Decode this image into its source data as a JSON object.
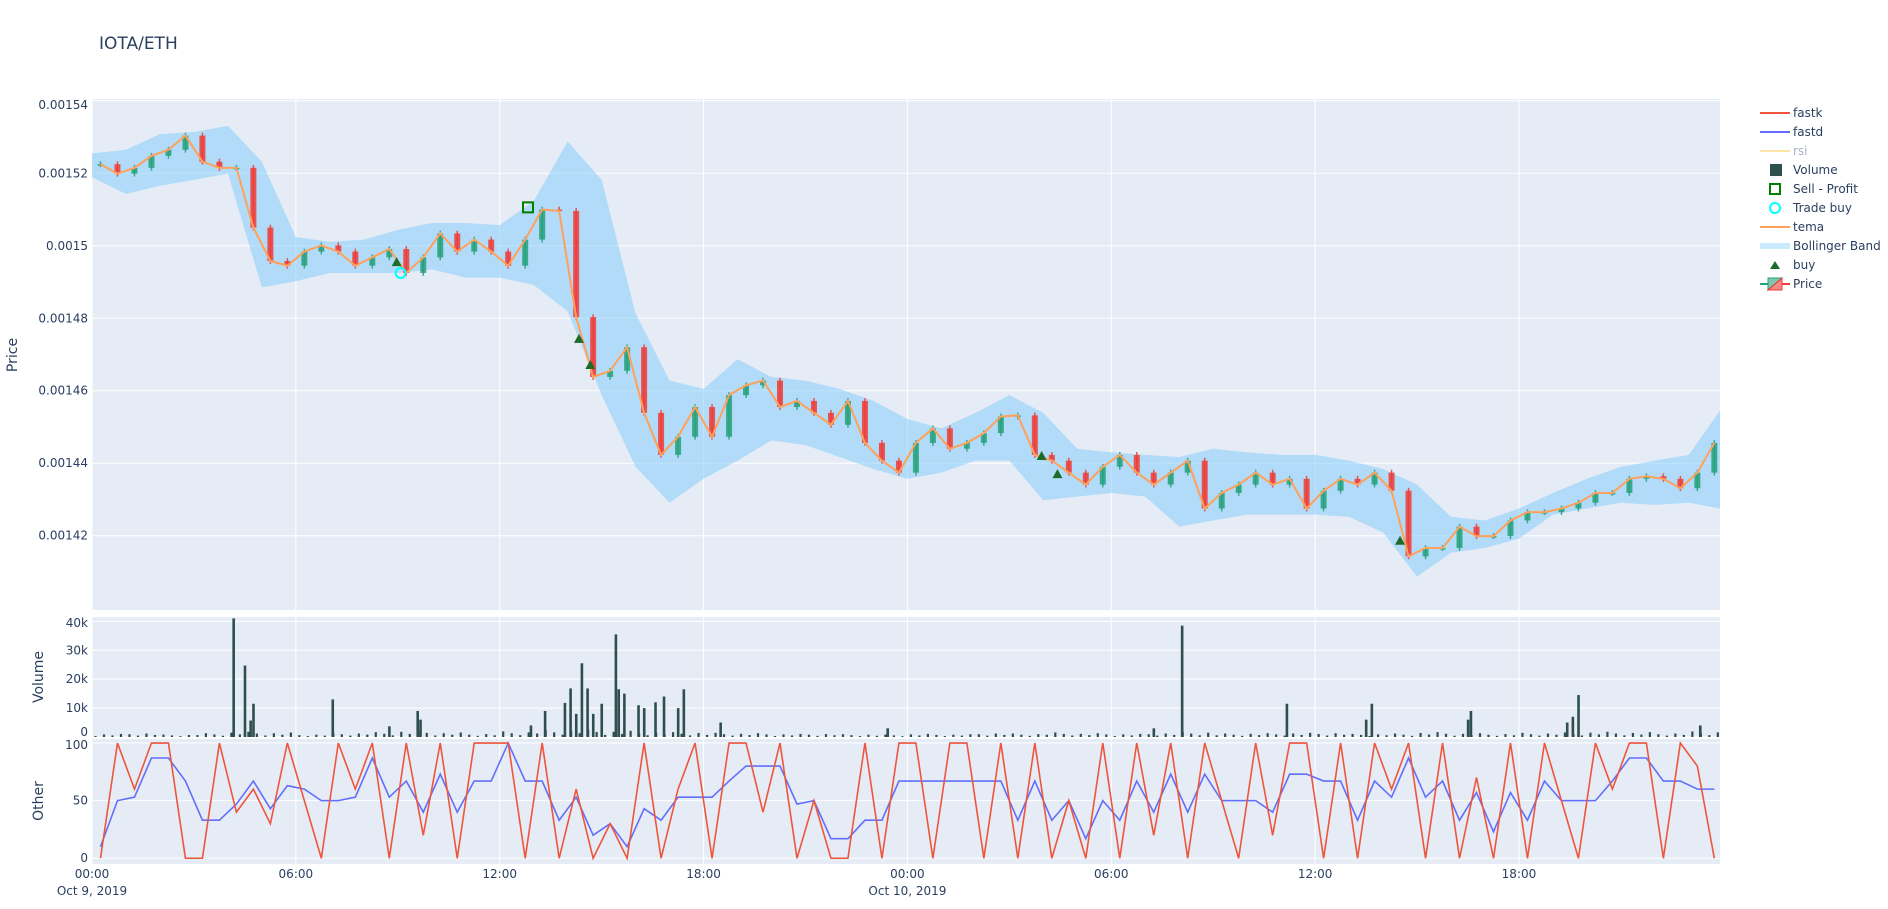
{
  "chart_data": {
    "type": "candlestick",
    "title": "IOTA/ETH",
    "x_ticks": [
      {
        "t": "2019-10-09 00:00",
        "label": "00:00",
        "sub": "Oct 9, 2019"
      },
      {
        "t": "2019-10-09 06:00",
        "label": "06:00",
        "sub": ""
      },
      {
        "t": "2019-10-09 12:00",
        "label": "12:00",
        "sub": ""
      },
      {
        "t": "2019-10-09 18:00",
        "label": "18:00",
        "sub": ""
      },
      {
        "t": "2019-10-10 00:00",
        "label": "00:00",
        "sub": "Oct 10, 2019"
      },
      {
        "t": "2019-10-10 06:00",
        "label": "06:00",
        "sub": ""
      },
      {
        "t": "2019-10-10 12:00",
        "label": "12:00",
        "sub": ""
      },
      {
        "t": "2019-10-10 18:00",
        "label": "18:00",
        "sub": ""
      }
    ],
    "xlim": [
      "2019-10-09 00:00",
      "2019-10-10 23:55"
    ],
    "grid": true,
    "legend_placement": "right",
    "panels": {
      "price": {
        "ylabel": "Price",
        "ylim": [
          0.0013995,
          0.0015405
        ],
        "y_ticks": [
          {
            "v": 0.00154,
            "label": "0.00154"
          },
          {
            "v": 0.00152,
            "label": "0.00152"
          },
          {
            "v": 0.0015,
            "label": "0.0015"
          },
          {
            "v": 0.00148,
            "label": "0.00148"
          },
          {
            "v": 0.00146,
            "label": "0.00146"
          },
          {
            "v": 0.00144,
            "label": "0.00144"
          },
          {
            "v": 0.00142,
            "label": "0.00142"
          }
        ]
      },
      "volume": {
        "ylabel": "Volume",
        "ylim": [
          0,
          41500
        ],
        "y_ticks": [
          {
            "v": 0,
            "label": "0"
          },
          {
            "v": 10000,
            "label": "10k"
          },
          {
            "v": 20000,
            "label": "20k"
          },
          {
            "v": 30000,
            "label": "30k"
          },
          {
            "v": 40000,
            "label": "40k"
          }
        ]
      },
      "other": {
        "ylabel": "Other",
        "ylim": [
          -5,
          103.5
        ],
        "y_ticks": [
          {
            "v": 0,
            "label": "0"
          },
          {
            "v": 50,
            "label": "50"
          },
          {
            "v": 100,
            "label": "100"
          }
        ]
      }
    },
    "price_close_30min": {
      "start": "2019-10-09 00:00",
      "values": [
        0.0015225,
        0.0015199,
        0.0015215,
        0.0015248,
        0.0015265,
        0.0015304,
        0.0015232,
        0.0015215,
        0.0015215,
        0.001505,
        0.0014958,
        0.0014945,
        0.0014984,
        0.0015001,
        0.0014984,
        0.0014945,
        0.0014968,
        0.0014991,
        0.0014925,
        0.0014968,
        0.0015034,
        0.0014984,
        0.0015017,
        0.0014984,
        0.0014945,
        0.0015017,
        0.00151,
        0.0015096,
        0.0014803,
        0.0014638,
        0.0014655,
        0.001472,
        0.0014539,
        0.0014423,
        0.0014473,
        0.0014555,
        0.0014473,
        0.0014588,
        0.0014615,
        0.0014628,
        0.0014555,
        0.0014572,
        0.0014539,
        0.0014506,
        0.0014572,
        0.0014456,
        0.0014407,
        0.0014374,
        0.0014456,
        0.0014496,
        0.001444,
        0.0014456,
        0.0014483,
        0.0014529,
        0.0014532,
        0.0014423,
        0.0014407,
        0.0014374,
        0.0014341,
        0.001439,
        0.0014423,
        0.0014374,
        0.0014341,
        0.0014374,
        0.0014407,
        0.0014275,
        0.0014318,
        0.0014341,
        0.0014374,
        0.0014341,
        0.0014357,
        0.0014275,
        0.0014324,
        0.0014357,
        0.0014341,
        0.0014374,
        0.0014324,
        0.0014143,
        0.0014166,
        0.0014166,
        0.0014225,
        0.0014199,
        0.0014199,
        0.0014242,
        0.0014265,
        0.0014265,
        0.0014275,
        0.0014291,
        0.0014318,
        0.0014318,
        0.0014357,
        0.0014364,
        0.0014357,
        0.0014331,
        0.0014374,
        0.0014456
      ]
    },
    "tema_30min": {
      "start": "2019-10-09 00:00",
      "values": [
        0.0015225,
        0.0015199,
        0.0015215,
        0.0015248,
        0.0015265,
        0.0015304,
        0.0015232,
        0.0015215,
        0.0015215,
        0.001505,
        0.0014958,
        0.0014945,
        0.0014984,
        0.0015001,
        0.0014984,
        0.0014945,
        0.0014968,
        0.0014991,
        0.0014925,
        0.0014968,
        0.0015034,
        0.0014984,
        0.0015017,
        0.0014984,
        0.0014945,
        0.0015017,
        0.00151,
        0.0015096,
        0.0014803,
        0.0014638,
        0.0014655,
        0.001472,
        0.0014539,
        0.0014423,
        0.0014473,
        0.0014555,
        0.0014473,
        0.0014588,
        0.0014615,
        0.0014628,
        0.0014555,
        0.0014572,
        0.0014539,
        0.0014506,
        0.0014572,
        0.0014456,
        0.0014407,
        0.0014374,
        0.0014456,
        0.0014496,
        0.001444,
        0.0014456,
        0.0014483,
        0.0014529,
        0.0014532,
        0.0014423,
        0.0014407,
        0.0014374,
        0.0014341,
        0.001439,
        0.0014423,
        0.0014374,
        0.0014341,
        0.0014374,
        0.0014407,
        0.0014275,
        0.0014318,
        0.0014341,
        0.0014374,
        0.0014341,
        0.0014357,
        0.0014275,
        0.0014324,
        0.0014357,
        0.0014341,
        0.0014374,
        0.0014324,
        0.0014143,
        0.0014166,
        0.0014166,
        0.0014225,
        0.0014199,
        0.0014199,
        0.0014242,
        0.0014265,
        0.0014265,
        0.0014275,
        0.0014291,
        0.0014318,
        0.0014318,
        0.0014357,
        0.0014364,
        0.0014357,
        0.0014331,
        0.0014374,
        0.0014456
      ]
    },
    "bollinger_1h": {
      "start": "2019-10-09 00:00",
      "upper": [
        0.0015255,
        0.0015265,
        0.0015308,
        0.0015314,
        0.0015331,
        0.0015232,
        0.0015024,
        0.0015011,
        0.0015017,
        0.0015044,
        0.0015063,
        0.0015063,
        0.0015057,
        0.0015123,
        0.0015288,
        0.0015182,
        0.0014813,
        0.0014628,
        0.0014605,
        0.0014687,
        0.0014638,
        0.0014628,
        0.0014605,
        0.0014572,
        0.0014522,
        0.0014496,
        0.0014539,
        0.0014588,
        0.0014539,
        0.001444,
        0.001443,
        0.0014423,
        0.0014417,
        0.001444,
        0.001443,
        0.0014423,
        0.0014423,
        0.0014407,
        0.0014384,
        0.0014341,
        0.0014252,
        0.0014242,
        0.0014275,
        0.0014318,
        0.0014357,
        0.001439,
        0.0014407,
        0.0014423,
        0.0014545
      ],
      "lower": [
        0.0015189,
        0.0015143,
        0.0015166,
        0.0015182,
        0.0015199,
        0.0014885,
        0.0014902,
        0.0014925,
        0.0014925,
        0.0014925,
        0.0014935,
        0.0014912,
        0.0014912,
        0.0014892,
        0.0014819,
        0.0014588,
        0.001439,
        0.0014291,
        0.0014357,
        0.0014407,
        0.0014463,
        0.001445,
        0.0014417,
        0.0014384,
        0.0014357,
        0.0014374,
        0.0014407,
        0.0014407,
        0.0014298,
        0.0014308,
        0.0014318,
        0.0014308,
        0.0014225,
        0.0014242,
        0.0014258,
        0.0014258,
        0.0014258,
        0.0014252,
        0.0014209,
        0.0014087,
        0.0014153,
        0.0014166,
        0.0014192,
        0.0014258,
        0.0014275,
        0.0014291,
        0.0014285,
        0.0014291,
        0.0014275
      ]
    },
    "buy_signals": [
      {
        "t": "2019-10-09 08:58",
        "v": 0.0014955
      },
      {
        "t": "2019-10-09 14:20",
        "v": 0.0014743
      },
      {
        "t": "2019-10-09 14:40",
        "v": 0.0014671
      },
      {
        "t": "2019-10-10 03:57",
        "v": 0.001442
      },
      {
        "t": "2019-10-10 04:25",
        "v": 0.001437
      },
      {
        "t": "2019-10-10 14:30",
        "v": 0.0014186
      }
    ],
    "trade_buys": [
      {
        "t": "2019-10-09 09:05",
        "v": 0.0014925
      }
    ],
    "sell_profit": [
      {
        "t": "2019-10-09 12:50",
        "v": 0.0015106
      }
    ],
    "volume_hourly_base": {
      "start": "2019-10-09 00:00",
      "values": [
        900,
        1200,
        700,
        1100,
        1500,
        1300,
        800,
        1200,
        1400,
        1800,
        1300,
        1000,
        1600,
        2000,
        2200,
        1800,
        1500,
        1400,
        1200,
        1100,
        900,
        1000,
        800,
        700,
        900,
        800,
        1200,
        1000,
        1300,
        1100,
        900,
        1200,
        1500,
        1000,
        1100,
        1200,
        1300,
        900,
        1000,
        1400,
        1100,
        1000,
        1200,
        1300,
        1500,
        1400,
        1200,
        1600
      ]
    },
    "volume_spikes": [
      {
        "t": "2019-10-09 04:10",
        "v": 41000
      },
      {
        "t": "2019-10-09 04:30",
        "v": 24700
      },
      {
        "t": "2019-10-09 04:40",
        "v": 5700
      },
      {
        "t": "2019-10-09 04:45",
        "v": 11500
      },
      {
        "t": "2019-10-09 07:05",
        "v": 13000
      },
      {
        "t": "2019-10-09 08:45",
        "v": 3700
      },
      {
        "t": "2019-10-09 09:35",
        "v": 9000
      },
      {
        "t": "2019-10-09 09:40",
        "v": 6000
      },
      {
        "t": "2019-10-09 12:55",
        "v": 4000
      },
      {
        "t": "2019-10-09 13:20",
        "v": 9000
      },
      {
        "t": "2019-10-09 13:55",
        "v": 11800
      },
      {
        "t": "2019-10-09 14:05",
        "v": 16800
      },
      {
        "t": "2019-10-09 14:15",
        "v": 8000
      },
      {
        "t": "2019-10-09 14:25",
        "v": 25500
      },
      {
        "t": "2019-10-09 14:35",
        "v": 16800
      },
      {
        "t": "2019-10-09 14:45",
        "v": 8000
      },
      {
        "t": "2019-10-09 15:00",
        "v": 11500
      },
      {
        "t": "2019-10-09 15:25",
        "v": 35500
      },
      {
        "t": "2019-10-09 15:30",
        "v": 16500
      },
      {
        "t": "2019-10-09 15:40",
        "v": 15000
      },
      {
        "t": "2019-10-09 16:05",
        "v": 11000
      },
      {
        "t": "2019-10-09 16:15",
        "v": 10000
      },
      {
        "t": "2019-10-09 16:35",
        "v": 12000
      },
      {
        "t": "2019-10-09 16:50",
        "v": 14000
      },
      {
        "t": "2019-10-09 17:15",
        "v": 10000
      },
      {
        "t": "2019-10-09 17:25",
        "v": 16500
      },
      {
        "t": "2019-10-09 18:30",
        "v": 5000
      },
      {
        "t": "2019-10-09 23:25",
        "v": 3000
      },
      {
        "t": "2019-10-10 07:15",
        "v": 3000
      },
      {
        "t": "2019-10-10 08:05",
        "v": 38500
      },
      {
        "t": "2019-10-10 11:10",
        "v": 11500
      },
      {
        "t": "2019-10-10 13:30",
        "v": 6000
      },
      {
        "t": "2019-10-10 13:40",
        "v": 11500
      },
      {
        "t": "2019-10-10 16:30",
        "v": 6000
      },
      {
        "t": "2019-10-10 16:35",
        "v": 9000
      },
      {
        "t": "2019-10-10 19:25",
        "v": 5000
      },
      {
        "t": "2019-10-10 19:35",
        "v": 7000
      },
      {
        "t": "2019-10-10 19:45",
        "v": 14500
      },
      {
        "t": "2019-10-10 23:20",
        "v": 4000
      }
    ],
    "oscillator_30min": {
      "start": "2019-10-09 00:00",
      "fastk": [
        0,
        100,
        60,
        100,
        100,
        0,
        0,
        100,
        40,
        60,
        30,
        100,
        50,
        0,
        100,
        60,
        100,
        0,
        100,
        20,
        100,
        0,
        100,
        100,
        100,
        0,
        100,
        0,
        60,
        0,
        30,
        0,
        100,
        0,
        60,
        100,
        0,
        100,
        100,
        40,
        100,
        0,
        50,
        0,
        0,
        100,
        0,
        100,
        100,
        0,
        100,
        100,
        0,
        100,
        0,
        100,
        0,
        50,
        0,
        100,
        0,
        100,
        20,
        100,
        0,
        100,
        50,
        0,
        100,
        20,
        100,
        100,
        0,
        100,
        0,
        100,
        60,
        100,
        0,
        100,
        0,
        70,
        0,
        100,
        0,
        100,
        50,
        0,
        100,
        60,
        100,
        100,
        0,
        100,
        80,
        0
      ],
      "fastd": [
        10,
        50,
        53,
        87,
        87,
        67,
        33,
        33,
        47,
        67,
        43,
        63,
        60,
        50,
        50,
        53,
        87,
        53,
        67,
        40,
        73,
        40,
        67,
        67,
        100,
        67,
        67,
        33,
        53,
        20,
        30,
        10,
        43,
        33,
        53,
        53,
        53,
        67,
        80,
        80,
        80,
        47,
        50,
        17,
        17,
        33,
        33,
        67,
        67,
        67,
        67,
        67,
        67,
        67,
        33,
        67,
        33,
        50,
        17,
        50,
        33,
        67,
        40,
        73,
        40,
        73,
        50,
        50,
        50,
        40,
        73,
        73,
        67,
        67,
        33,
        67,
        53,
        87,
        53,
        67,
        33,
        57,
        23,
        57,
        33,
        67,
        50,
        50,
        50,
        67,
        87,
        87,
        67,
        67,
        60,
        60
      ]
    },
    "colors": {
      "plot_bg": "#E5ECF6",
      "increasing": "#26A17B",
      "decreasing": "#EF3B36",
      "fastk": "#EF553B",
      "fastd": "#636EFA",
      "rsi": "#FFE4A8",
      "volume": "#2F4F4F",
      "sell_profit": "#008000",
      "trade_buy": "#00FFFF",
      "tema": "#FFA15A",
      "bollinger": "#87CEFA",
      "buy": "#1B6B2A"
    },
    "legend": [
      {
        "key": "fastk",
        "label": "fastk",
        "symbol": "line"
      },
      {
        "key": "fastd",
        "label": "fastd",
        "symbol": "line"
      },
      {
        "key": "rsi",
        "label": "rsi",
        "symbol": "line",
        "hidden": true
      },
      {
        "key": "volume",
        "label": "Volume",
        "symbol": "square"
      },
      {
        "key": "sell_profit",
        "label": "Sell - Profit",
        "symbol": "square-open"
      },
      {
        "key": "trade_buy",
        "label": "Trade buy",
        "symbol": "circle-open"
      },
      {
        "key": "tema",
        "label": "tema",
        "symbol": "line"
      },
      {
        "key": "bollinger",
        "label": "Bollinger Band",
        "symbol": "band"
      },
      {
        "key": "buy",
        "label": "buy",
        "symbol": "triangle"
      },
      {
        "key": "price",
        "label": "Price",
        "symbol": "candle"
      }
    ]
  }
}
